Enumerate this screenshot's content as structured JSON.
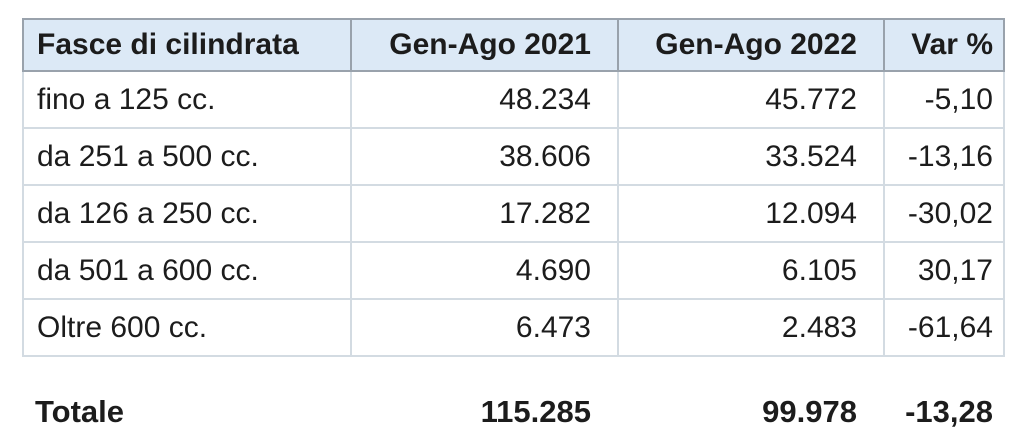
{
  "colors": {
    "header_bg": "#dce9f6",
    "header_border": "#99a2ac",
    "grid_border": "#d3dbe2",
    "text": "#1c1c1c",
    "page_bg": "#ffffff"
  },
  "table": {
    "headers": [
      "Fasce di cilindrata",
      "Gen-Ago 2021",
      "Gen-Ago 2022",
      "Var %"
    ],
    "rows": [
      {
        "label": "fino a 125 cc.",
        "y2021": "48.234",
        "y2022": "45.772",
        "var_pct": "-5,10"
      },
      {
        "label": "da 251 a 500 cc.",
        "y2021": "38.606",
        "y2022": "33.524",
        "var_pct": "-13,16"
      },
      {
        "label": "da 126 a 250 cc.",
        "y2021": "17.282",
        "y2022": "12.094",
        "var_pct": "-30,02"
      },
      {
        "label": "da 501 a 600 cc.",
        "y2021": "4.690",
        "y2022": "6.105",
        "var_pct": "30,17"
      },
      {
        "label": "Oltre 600 cc.",
        "y2021": "6.473",
        "y2022": "2.483",
        "var_pct": "-61,64"
      }
    ],
    "total": {
      "label": "Totale",
      "y2021": "115.285",
      "y2022": "99.978",
      "var_pct": "-13,28"
    }
  },
  "chart_data": {
    "type": "table",
    "columns": [
      "Fasce di cilindrata",
      "Gen-Ago 2021",
      "Gen-Ago 2022",
      "Var %"
    ],
    "rows": [
      [
        "fino a 125 cc.",
        48234,
        45772,
        -5.1
      ],
      [
        "da 251 a 500 cc.",
        38606,
        33524,
        -13.16
      ],
      [
        "da 126 a 250 cc.",
        17282,
        12094,
        -30.02
      ],
      [
        "da 501 a 600 cc.",
        4690,
        6105,
        30.17
      ],
      [
        "Oltre 600 cc.",
        6473,
        2483,
        -61.64
      ]
    ],
    "total_row": [
      "Totale",
      115285,
      99978,
      -13.28
    ]
  }
}
